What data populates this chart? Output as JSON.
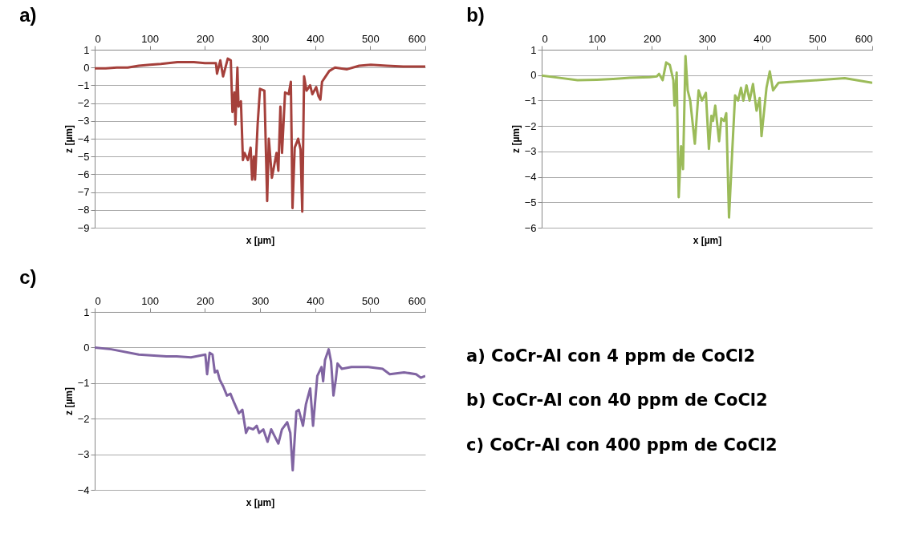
{
  "chart_data": [
    {
      "type": "line",
      "title": "a)",
      "xlabel": "x [µm]",
      "ylabel": "z [µm]",
      "grid": "y",
      "xlim": [
        0,
        600
      ],
      "xticks": [
        0,
        100,
        200,
        300,
        400,
        500,
        600
      ],
      "ylim": [
        -9,
        1
      ],
      "yticks": [
        1,
        0,
        -1,
        -2,
        -3,
        -4,
        -5,
        -6,
        -7,
        -8,
        -9
      ],
      "x": [
        0,
        20,
        40,
        60,
        80,
        100,
        120,
        150,
        180,
        200,
        220,
        222,
        228,
        233,
        241.5,
        247,
        250,
        253.7,
        255.4,
        259,
        261,
        265.4,
        269,
        272,
        278,
        283,
        285.7,
        289,
        291,
        295.7,
        300,
        308,
        313,
        316,
        321.6,
        330,
        333.3,
        337,
        340,
        345.5,
        352,
        356,
        359,
        363,
        369.3,
        373.6,
        376.7,
        380,
        384.4,
        391,
        395,
        402,
        406,
        409.6,
        412.6,
        419,
        425.6,
        436,
        458,
        480,
        501,
        530,
        560,
        600
      ],
      "series": [
        {
          "color": "#a5403b",
          "values": [
            -0.05,
            -0.05,
            0,
            0,
            0.1,
            0.15,
            0.2,
            0.3,
            0.3,
            0.25,
            0.25,
            -0.35,
            0.4,
            -0.5,
            0.5,
            0.4,
            -2.5,
            -1.4,
            -3.2,
            0,
            -2.2,
            -1.9,
            -5.2,
            -4.8,
            -5.2,
            -4.5,
            -6.3,
            -5,
            -6.3,
            -3.2,
            -1.2,
            -1.3,
            -7.5,
            -4,
            -6.2,
            -4.8,
            -5.8,
            -2.2,
            -4.8,
            -1.4,
            -1.5,
            -0.8,
            -7.9,
            -4.5,
            -4,
            -4.6,
            -8.1,
            -0.5,
            -1.3,
            -1,
            -1.5,
            -1.1,
            -1.6,
            -1.8,
            -0.8,
            -0.5,
            -0.2,
            0,
            -0.1,
            0.1,
            0.15,
            0.1,
            0.05,
            0.05
          ]
        }
      ]
    },
    {
      "type": "line",
      "title": "b)",
      "xlabel": "x [µm]",
      "ylabel": "z [µm]",
      "grid": "y",
      "xlim": [
        0,
        600
      ],
      "xticks": [
        0,
        100,
        200,
        300,
        400,
        500,
        600
      ],
      "ylim": [
        -6,
        1
      ],
      "yticks": [
        1,
        0,
        -1,
        -2,
        -3,
        -4,
        -5,
        -6
      ],
      "x": [
        0,
        30,
        65,
        100,
        130,
        160,
        196,
        209,
        213,
        219.6,
        226,
        232.6,
        239,
        241,
        245,
        248.7,
        253,
        256.5,
        261,
        265,
        269.6,
        278,
        284.8,
        291,
        298,
        303.5,
        308,
        311,
        315,
        322,
        326,
        331,
        335,
        340,
        345.6,
        351,
        356.5,
        361.7,
        366,
        371.7,
        377.4,
        383.5,
        390,
        395.6,
        399,
        408,
        414,
        420,
        430,
        460,
        500,
        550,
        600
      ],
      "series": [
        {
          "color": "#9bbb59",
          "values": [
            -0.02,
            -0.1,
            -0.2,
            -0.18,
            -0.15,
            -0.1,
            -0.08,
            -0.05,
            0.05,
            -0.2,
            0.5,
            0.4,
            -0.2,
            -1.2,
            0.1,
            -4.8,
            -2.8,
            -3.7,
            0.75,
            -0.6,
            -1,
            -2.7,
            -0.6,
            -1,
            -0.7,
            -2.9,
            -1.6,
            -1.8,
            -1.2,
            -2.6,
            -1.7,
            -1.8,
            -1.5,
            -5.6,
            -3.1,
            -0.8,
            -1,
            -0.5,
            -1,
            -0.4,
            -1,
            -0.35,
            -1.4,
            -0.9,
            -2.4,
            -0.5,
            0.15,
            -0.6,
            -0.3,
            -0.25,
            -0.2,
            -0.12,
            -0.3
          ]
        }
      ]
    },
    {
      "type": "line",
      "title": "c)",
      "xlabel": "x [µm]",
      "ylabel": "z [µm]",
      "grid": "y",
      "xlim": [
        0,
        600
      ],
      "xticks": [
        0,
        100,
        200,
        300,
        400,
        500,
        600
      ],
      "ylim": [
        -4,
        1
      ],
      "yticks": [
        1,
        0,
        -1,
        -2,
        -3,
        -4
      ],
      "x": [
        0,
        30,
        80,
        130,
        148.6,
        174.7,
        200.8,
        204,
        208.6,
        213.8,
        218,
        222.5,
        226.8,
        233.4,
        240,
        246.4,
        253,
        261.6,
        268,
        274.6,
        279,
        287.7,
        294,
        298.5,
        306,
        313.7,
        320.3,
        326.8,
        333.3,
        339.8,
        349.4,
        355,
        359.4,
        366,
        370.3,
        373.7,
        378,
        383.3,
        391.1,
        396.3,
        404,
        411.6,
        414.6,
        418,
        424.6,
        429,
        433.3,
        437.6,
        440.7,
        448.5,
        466,
        496.3,
        522.4,
        535.4,
        561.5,
        583.2,
        591.9,
        600
      ],
      "series": [
        {
          "color": "#8064a2",
          "values": [
            0,
            -0.05,
            -0.2,
            -0.25,
            -0.25,
            -0.28,
            -0.2,
            -0.75,
            -0.15,
            -0.2,
            -0.7,
            -0.65,
            -0.9,
            -1.1,
            -1.35,
            -1.3,
            -1.55,
            -1.85,
            -1.75,
            -2.4,
            -2.25,
            -2.3,
            -2.2,
            -2.4,
            -2.3,
            -2.65,
            -2.3,
            -2.5,
            -2.7,
            -2.3,
            -2.1,
            -2.4,
            -3.45,
            -1.8,
            -1.75,
            -1.95,
            -2.2,
            -1.6,
            -1.15,
            -2.2,
            -0.8,
            -0.55,
            -0.95,
            -0.35,
            -0.05,
            -0.4,
            -1.35,
            -0.9,
            -0.45,
            -0.6,
            -0.55,
            -0.55,
            -0.6,
            -0.75,
            -0.7,
            -0.75,
            -0.85,
            -0.8
          ]
        }
      ]
    },
    {
      "type": "other",
      "annotations": [
        "a) CoCr-Al con 4 ppm de CoCl2",
        "b) CoCr-Al con 40 ppm de CoCl2",
        "c) CoCr-Al con 400 ppm de CoCl2"
      ]
    }
  ]
}
